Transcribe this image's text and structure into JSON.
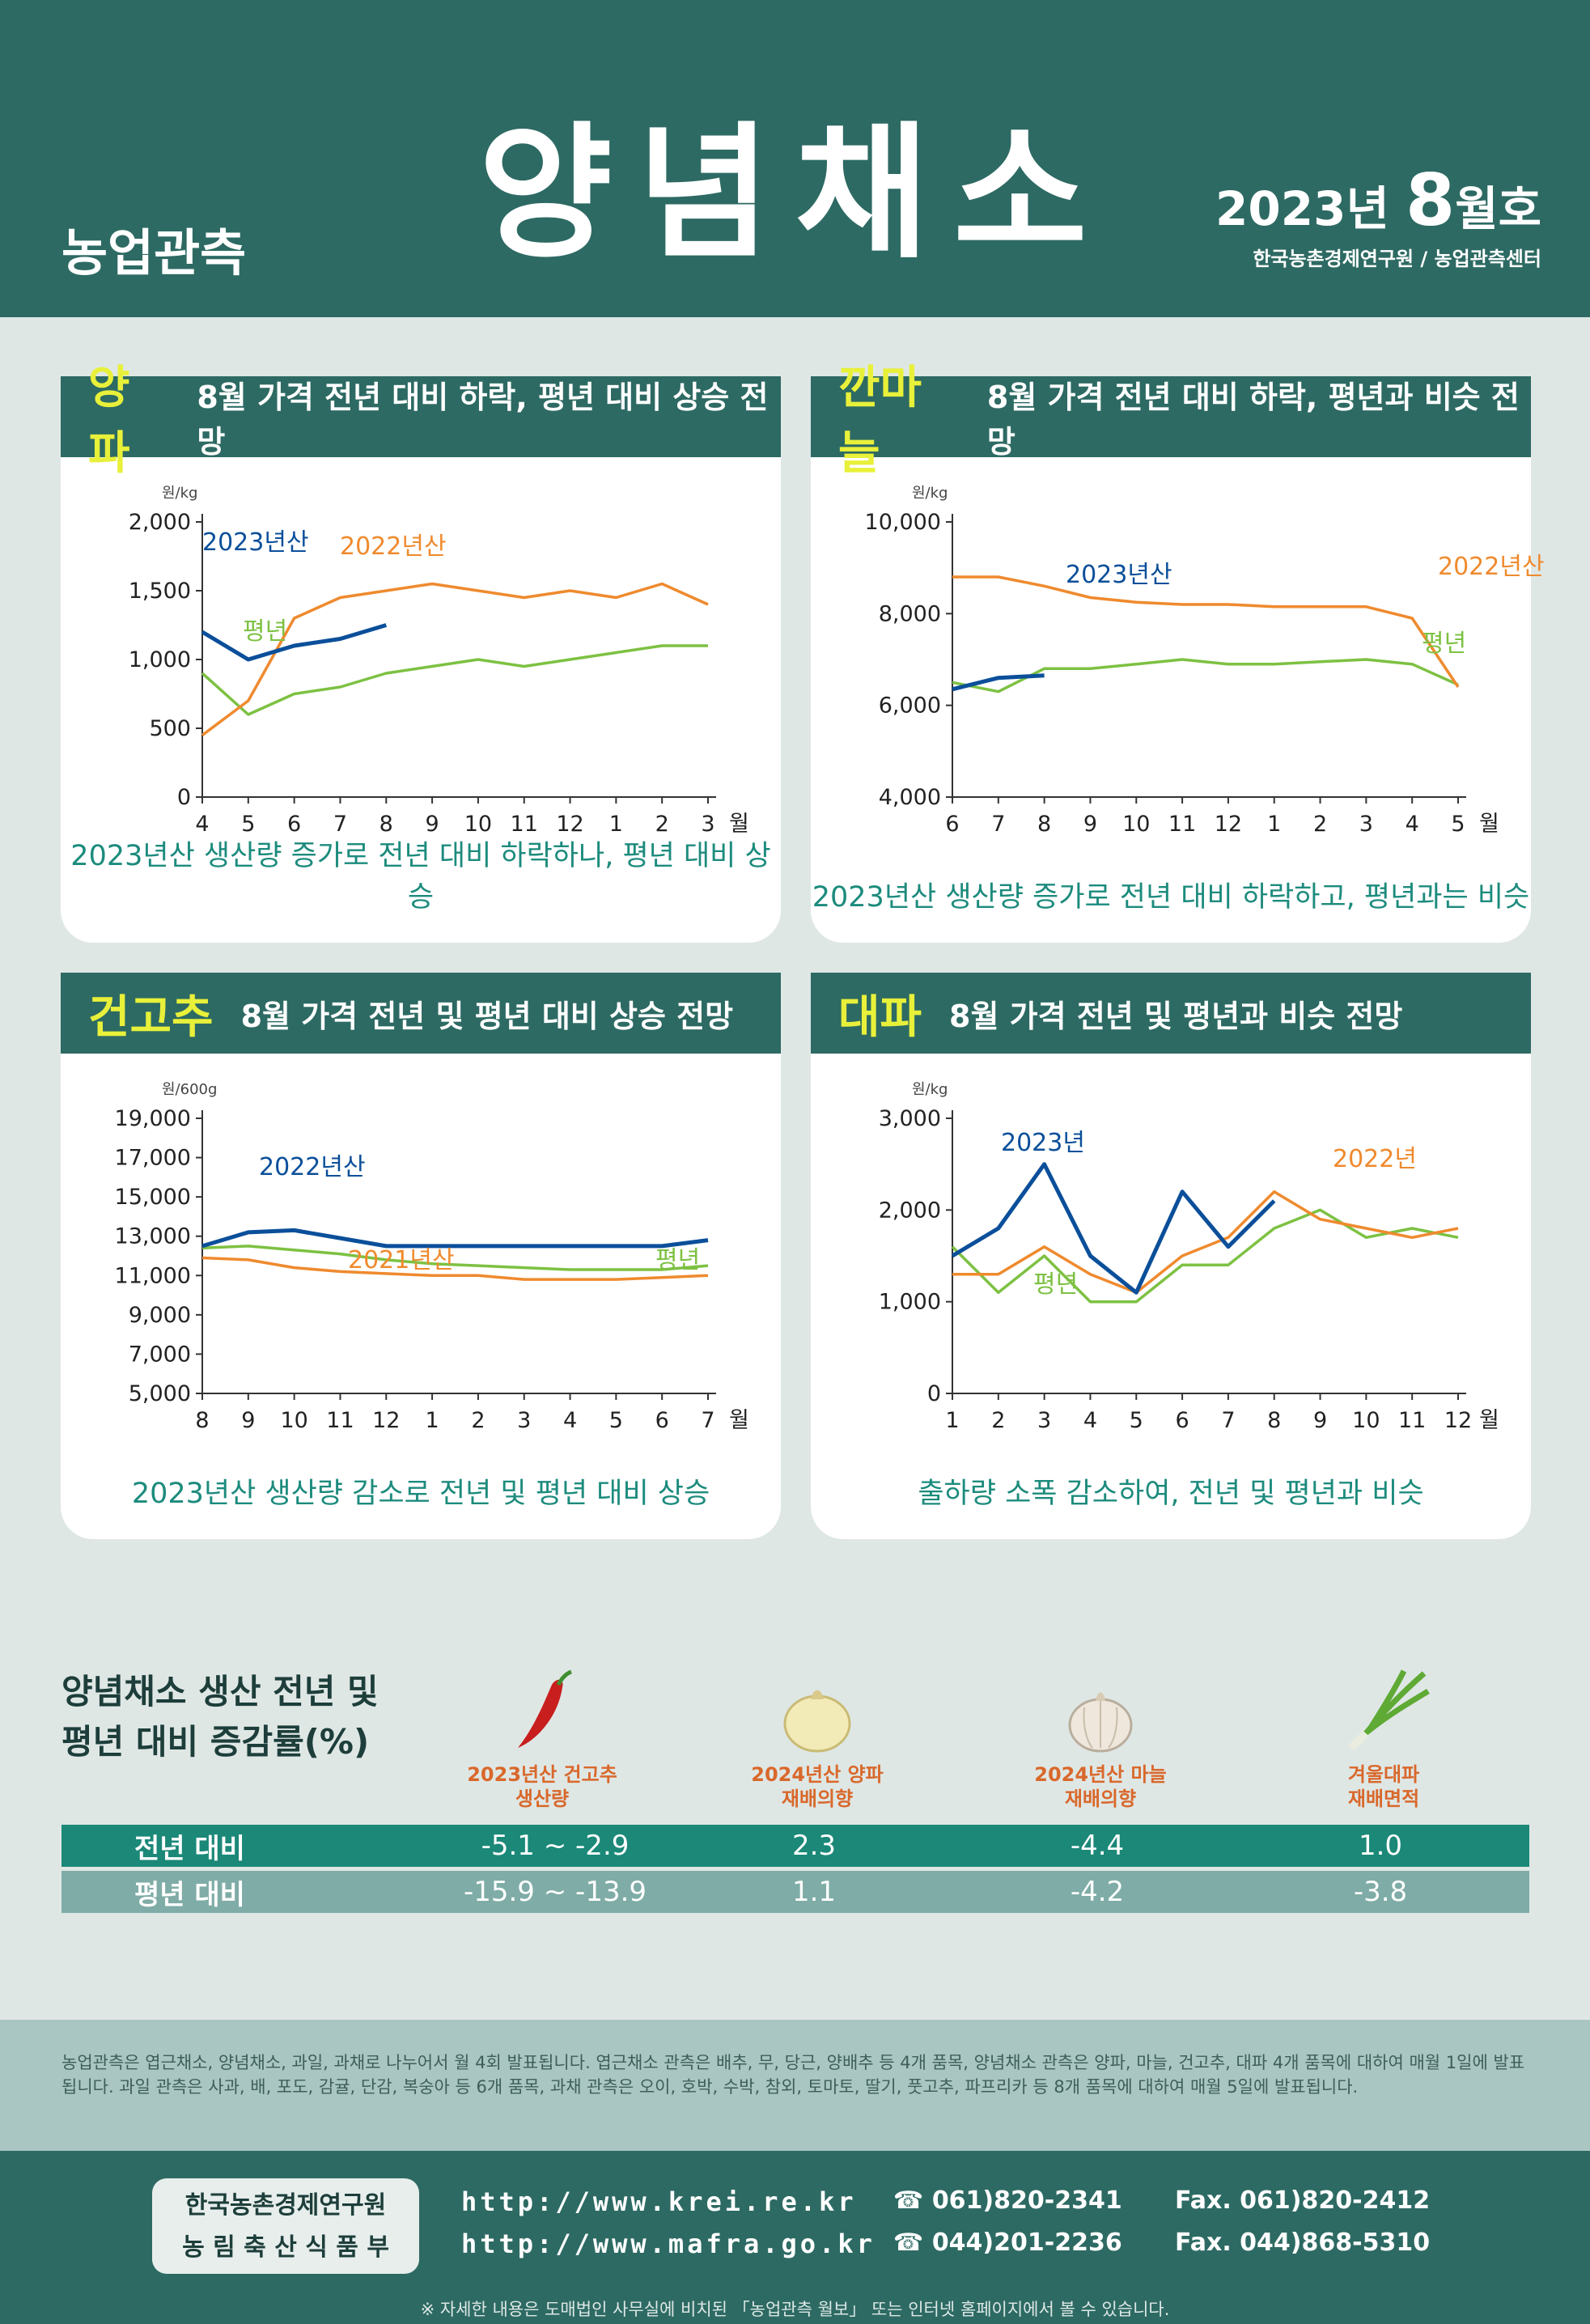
{
  "header": {
    "brand": "농업관측",
    "title": "양념채소",
    "issue_year": "2023년",
    "issue_month": "8",
    "issue_suffix": "월호",
    "org": "한국농촌경제연구원 / 농업관측센터"
  },
  "colors": {
    "line_2023": "#0b4f9a",
    "line_2022": "#ef8a2e",
    "line_avg": "#7dc142",
    "accent_head": "#2d6a63"
  },
  "panels": [
    {
      "name": "양파",
      "subtitle": "8월 가격 전년 대비 하락, 평년 대비 상승 전망",
      "caption": "2023년산 생산량 증가로 전년 대비 하락하나, 평년 대비 상승",
      "unit": "원/kg",
      "series_labels": [
        "2023년산",
        "2022년산",
        "평년"
      ]
    },
    {
      "name": "깐마늘",
      "subtitle": "8월 가격 전년 대비 하락, 평년과 비슷 전망",
      "caption": "2023년산 생산량 증가로 전년 대비 하락하고, 평년과는 비슷",
      "unit": "원/kg",
      "series_labels": [
        "2023년산",
        "2022년산",
        "평년"
      ]
    },
    {
      "name": "건고추",
      "subtitle": "8월 가격 전년 및 평년 대비 상승 전망",
      "caption": "2023년산 생산량 감소로 전년 및 평년 대비 상승",
      "unit": "원/600g",
      "series_labels": [
        "2022년산",
        "2021년산",
        "평년"
      ]
    },
    {
      "name": "대파",
      "subtitle": "8월 가격 전년 및 평년과 비슷 전망",
      "caption": "출하량 소폭 감소하여, 전년 및 평년과 비슷",
      "unit": "원/kg",
      "series_labels": [
        "2023년",
        "2022년",
        "평년"
      ]
    }
  ],
  "chart_data": [
    {
      "type": "line",
      "title": "양파",
      "ylabel": "원/kg",
      "x": [
        "4",
        "5",
        "6",
        "7",
        "8",
        "9",
        "10",
        "11",
        "12",
        "1",
        "2",
        "3"
      ],
      "x_unit": "월",
      "ylim": [
        0,
        2000
      ],
      "yticks": [
        "0",
        "500",
        "1,000",
        "1,500",
        "2,000"
      ],
      "series": [
        {
          "name": "2023년산",
          "values": [
            1200,
            1000,
            1100,
            1150,
            1250,
            null,
            null,
            null,
            null,
            null,
            null,
            null
          ]
        },
        {
          "name": "2022년산",
          "values": [
            450,
            700,
            1300,
            1450,
            1500,
            1550,
            1500,
            1450,
            1500,
            1450,
            1550,
            1400
          ]
        },
        {
          "name": "평년",
          "values": [
            900,
            600,
            750,
            800,
            900,
            950,
            1000,
            950,
            1000,
            1050,
            1100,
            1100
          ]
        }
      ]
    },
    {
      "type": "line",
      "title": "깐마늘",
      "ylabel": "원/kg",
      "x": [
        "6",
        "7",
        "8",
        "9",
        "10",
        "11",
        "12",
        "1",
        "2",
        "3",
        "4",
        "5"
      ],
      "x_unit": "월",
      "ylim": [
        4000,
        10000
      ],
      "yticks": [
        "4,000",
        "6,000",
        "8,000",
        "10,000"
      ],
      "series": [
        {
          "name": "2023년산",
          "values": [
            6350,
            6600,
            6650,
            null,
            null,
            null,
            null,
            null,
            null,
            null,
            null,
            null
          ]
        },
        {
          "name": "2022년산",
          "values": [
            8800,
            8800,
            8600,
            8350,
            8250,
            8200,
            8200,
            8150,
            8150,
            8150,
            7900,
            6400
          ]
        },
        {
          "name": "평년",
          "values": [
            6500,
            6300,
            6800,
            6800,
            6900,
            7000,
            6900,
            6900,
            6950,
            7000,
            6900,
            6450
          ]
        }
      ]
    },
    {
      "type": "line",
      "title": "건고추",
      "ylabel": "원/600g",
      "x": [
        "8",
        "9",
        "10",
        "11",
        "12",
        "1",
        "2",
        "3",
        "4",
        "5",
        "6",
        "7"
      ],
      "x_unit": "월",
      "ylim": [
        5000,
        19000
      ],
      "yticks": [
        "5,000",
        "7,000",
        "9,000",
        "11,000",
        "13,000",
        "15,000",
        "17,000",
        "19,000"
      ],
      "series": [
        {
          "name": "2022년산",
          "values": [
            12500,
            13200,
            13300,
            12900,
            12500,
            12500,
            12500,
            12500,
            12500,
            12500,
            12500,
            12800
          ]
        },
        {
          "name": "2021년산",
          "values": [
            11900,
            11800,
            11400,
            11200,
            11100,
            11000,
            11000,
            10800,
            10800,
            10800,
            10900,
            11000
          ]
        },
        {
          "name": "평년",
          "values": [
            12400,
            12500,
            12300,
            12100,
            11800,
            11600,
            11500,
            11400,
            11300,
            11300,
            11300,
            11500
          ]
        }
      ]
    },
    {
      "type": "line",
      "title": "대파",
      "ylabel": "원/kg",
      "x": [
        "1",
        "2",
        "3",
        "4",
        "5",
        "6",
        "7",
        "8",
        "9",
        "10",
        "11",
        "12"
      ],
      "x_unit": "월",
      "ylim": [
        0,
        3000
      ],
      "yticks": [
        "0",
        "1,000",
        "2,000",
        "3,000"
      ],
      "series": [
        {
          "name": "2023년",
          "values": [
            1500,
            1800,
            2500,
            1500,
            1100,
            2200,
            1600,
            2100,
            null,
            null,
            null,
            null
          ]
        },
        {
          "name": "2022년",
          "values": [
            1300,
            1300,
            1600,
            1300,
            1100,
            1500,
            1700,
            2200,
            1900,
            1800,
            1700,
            1800
          ]
        },
        {
          "name": "평년",
          "values": [
            1600,
            1100,
            1500,
            1000,
            1000,
            1400,
            1400,
            1800,
            2000,
            1700,
            1800,
            1700
          ]
        }
      ]
    }
  ],
  "stats": {
    "title_line1": "양념채소 생산 전년 및",
    "title_line2": "평년 대비 증감률(%)",
    "columns": [
      {
        "head1": "2023년산 건고추",
        "head2": "생산량",
        "icon": "pepper-icon"
      },
      {
        "head1": "2024년산 양파",
        "head2": "재배의향",
        "icon": "onion-icon"
      },
      {
        "head1": "2024년산 마늘",
        "head2": "재배의향",
        "icon": "garlic-icon"
      },
      {
        "head1": "겨울대파",
        "head2": "재배면적",
        "icon": "green-onion-icon"
      }
    ],
    "rows": [
      {
        "label": "전년 대비",
        "values": [
          "-5.1 ~ -2.9",
          "2.3",
          "-4.4",
          "1.0"
        ]
      },
      {
        "label": "평년 대비",
        "values": [
          "-15.9 ~ -13.9",
          "1.1",
          "-4.2",
          "-3.8"
        ]
      }
    ]
  },
  "note": "농업관측은 엽근채소, 양념채소, 과일, 과채로 나누어서 월 4회 발표됩니다. 엽근채소 관측은 배추, 무, 당근, 양배추 등 4개 품목, 양념채소 관측은 양파, 마늘, 건고추, 대파 4개 품목에 대하여 매월 1일에 발표됩니다. 과일 관측은 사과, 배, 포도, 감귤, 단감, 복숭아 등 6개 품목, 과채 관측은 오이, 호박, 수박, 참외, 토마토, 딸기, 풋고추, 파프리카 등 8개 품목에 대하여 매월 5일에 발표됩니다.",
  "footer": {
    "org1": "한국농촌경제연구원",
    "org2": "농 림 축 산 식 품 부",
    "url1": "http://www.krei.re.kr",
    "url2": "http://www.mafra.go.kr",
    "tel1": "☎ 061)820-2341",
    "tel2": "☎ 044)201-2236",
    "fax1": "Fax. 061)820-2412",
    "fax2": "Fax. 044)868-5310",
    "bottom_note": "※ 자세한 내용은 도매법인 사무실에 비치된 「농업관측 월보」 또는 인터넷 홈페이지에서 볼 수 있습니다."
  }
}
